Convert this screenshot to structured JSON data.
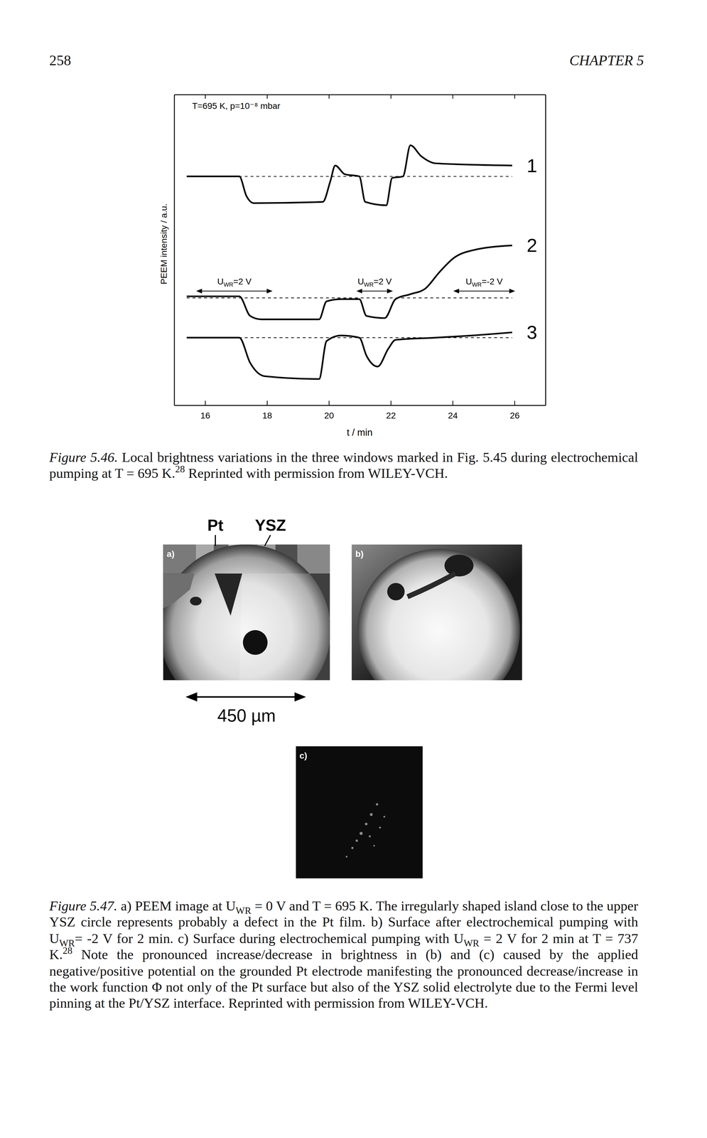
{
  "header": {
    "page_number": "258",
    "chapter": "CHAPTER 5"
  },
  "chart_data": {
    "type": "line",
    "title": "T=695 K, p=10⁻⁸ mbar",
    "x_label": "t / min",
    "y_label": "PEEM intensity / a.u.",
    "xlim": [
      15,
      27
    ],
    "xticks": [
      16,
      18,
      20,
      22,
      24,
      26
    ],
    "ylim": [
      0,
      10
    ],
    "tick_labels": "x",
    "color": "#000000",
    "series": [
      {
        "name": "1",
        "baseline": 7.36,
        "x": [
          15.41,
          17.11,
          17.34,
          17.58,
          19.81,
          20.05,
          20.21,
          20.52,
          20.99,
          21.18,
          21.86,
          22.05,
          22.4,
          22.64,
          22.99,
          23.46,
          25.93
        ],
        "values": [
          7.36,
          7.36,
          6.73,
          6.5,
          6.54,
          7.2,
          7.71,
          7.43,
          7.36,
          6.54,
          6.43,
          7.31,
          7.36,
          8.36,
          8.01,
          7.78,
          7.71
        ]
      },
      {
        "name": "2",
        "baseline": 3.45,
        "x": [
          15.41,
          17.11,
          17.46,
          17.81,
          19.69,
          19.93,
          20.4,
          20.99,
          21.22,
          21.81,
          22.16,
          22.64,
          23.11,
          23.58,
          24.05,
          24.64,
          25.93
        ],
        "values": [
          3.5,
          3.5,
          2.87,
          2.76,
          2.76,
          3.34,
          3.41,
          3.41,
          2.87,
          2.8,
          3.41,
          3.57,
          3.74,
          4.28,
          4.74,
          4.98,
          5.14
        ]
      },
      {
        "name": "3",
        "baseline": 2.17,
        "x": [
          15.41,
          17.11,
          17.46,
          17.93,
          19.69,
          19.93,
          20.4,
          20.99,
          21.22,
          21.58,
          21.93,
          22.16,
          23.46,
          24.64,
          25.93
        ],
        "values": [
          2.17,
          2.17,
          1.36,
          0.93,
          0.84,
          2.06,
          2.24,
          2.17,
          1.59,
          1.24,
          1.82,
          2.1,
          2.17,
          2.24,
          2.34
        ]
      }
    ],
    "annotations": [
      {
        "symbol": "U",
        "subscript": "WR",
        "text": "=2 V",
        "x_range": [
          15.81,
          18.09
        ],
        "y": 3.67
      },
      {
        "symbol": "U",
        "subscript": "WR",
        "text": "=2 V",
        "x_range": [
          20.99,
          21.98
        ],
        "y": 3.67
      },
      {
        "symbol": "U",
        "subscript": "WR",
        "text": "=-2 V",
        "x_range": [
          24.12,
          25.93
        ],
        "y": 3.67
      }
    ]
  },
  "figure_5_46": {
    "caption": [
      {
        "italic": "Figure 5.46."
      },
      {
        "text": " Local brightness variations in the three windows marked in Fig. 5.45 during electrochemical pumping at T = 695 K."
      },
      {
        "sup": "28"
      },
      {
        "text": " Reprinted with permission from WILEY-VCH."
      }
    ]
  },
  "figure_5_47": {
    "pointer_labels": [
      "Pt",
      "YSZ"
    ],
    "panels": [
      "a)",
      "b)",
      "c)"
    ],
    "scale_bar": "450 µm",
    "caption": [
      {
        "italic": "Figure 5.47."
      },
      {
        "text": " a) PEEM image at U"
      },
      {
        "sub": "WR"
      },
      {
        "text": " = 0 V and T = 695 K. The irregularly shaped island close to the upper YSZ circle represents probably a defect in the Pt film. b) Surface after electrochemical pumping with U"
      },
      {
        "sub": "WR"
      },
      {
        "text": "= -2 V for 2 min. c) Surface during electrochemical pumping with U"
      },
      {
        "sub": "WR"
      },
      {
        "text": " = 2 V for 2 min at T = 737 K."
      },
      {
        "sup": "28"
      },
      {
        "text": " Note the pronounced increase/decrease in brightness in (b) and (c) caused by the applied negative/positive potential on the grounded Pt electrode manifesting the pronounced decrease/increase in the work function Φ not only of the Pt surface but also of the YSZ solid electrolyte due to the Fermi level pinning at the Pt/YSZ interface. Reprinted with permission from WILEY-VCH."
      }
    ]
  }
}
